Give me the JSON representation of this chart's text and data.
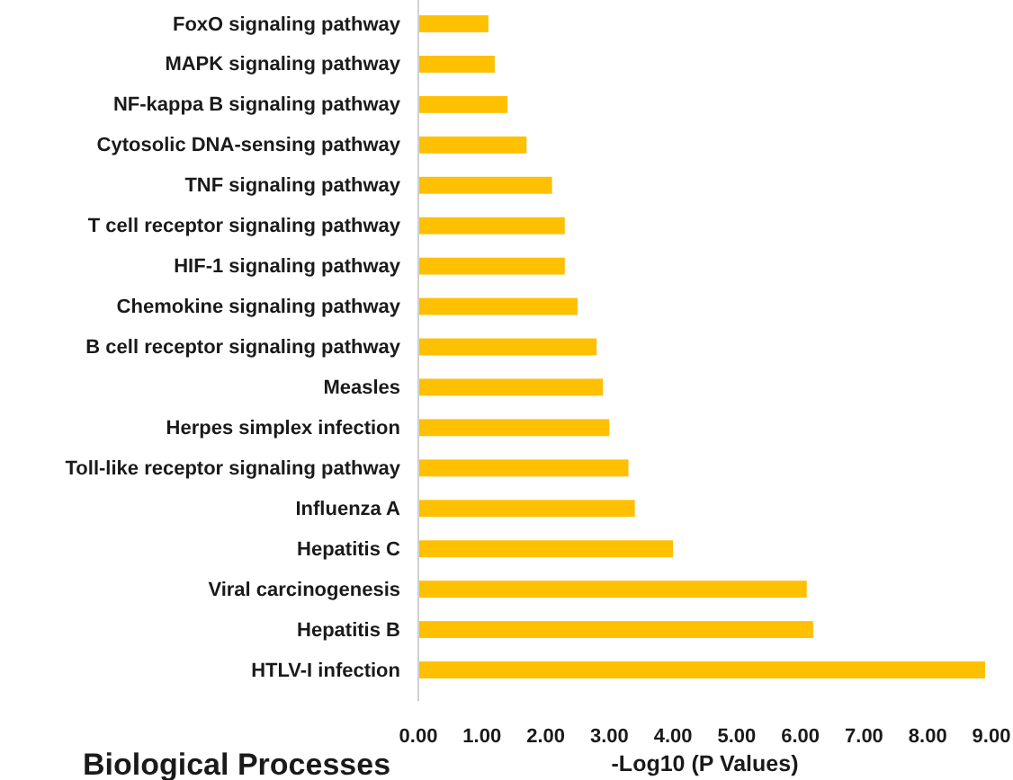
{
  "chart_data": {
    "type": "bar",
    "orientation": "horizontal",
    "categories": [
      "FoxO signaling pathway",
      "MAPK signaling pathway",
      "NF-kappa B signaling pathway",
      "Cytosolic DNA-sensing pathway",
      "TNF signaling pathway",
      "T cell receptor signaling pathway",
      "HIF-1 signaling pathway",
      "Chemokine signaling pathway",
      "B cell receptor signaling pathway",
      "Measles",
      "Herpes simplex infection",
      "Toll-like receptor signaling pathway",
      "Influenza A",
      "Hepatitis C",
      "Viral carcinogenesis",
      "Hepatitis B",
      "HTLV-I infection"
    ],
    "values": [
      1.1,
      1.2,
      1.4,
      1.7,
      2.1,
      2.3,
      2.3,
      2.5,
      2.8,
      2.9,
      3.0,
      3.3,
      3.4,
      4.0,
      6.1,
      6.2,
      8.9
    ],
    "color": "#ffc000",
    "xlim": [
      0,
      9
    ],
    "xticks": [
      {
        "value": 0,
        "label": "0.00"
      },
      {
        "value": 1,
        "label": "1.00"
      },
      {
        "value": 2,
        "label": "2.00"
      },
      {
        "value": 3,
        "label": "3.00"
      },
      {
        "value": 4,
        "label": "4.00"
      },
      {
        "value": 5,
        "label": "5.00"
      },
      {
        "value": 6,
        "label": "6.00"
      },
      {
        "value": 7,
        "label": "7.00"
      },
      {
        "value": 8,
        "label": "8.00"
      },
      {
        "value": 9,
        "label": "9.00"
      }
    ],
    "xlabel": "-Log10 (P Values)",
    "annotations": [
      "Biological Processes"
    ]
  }
}
